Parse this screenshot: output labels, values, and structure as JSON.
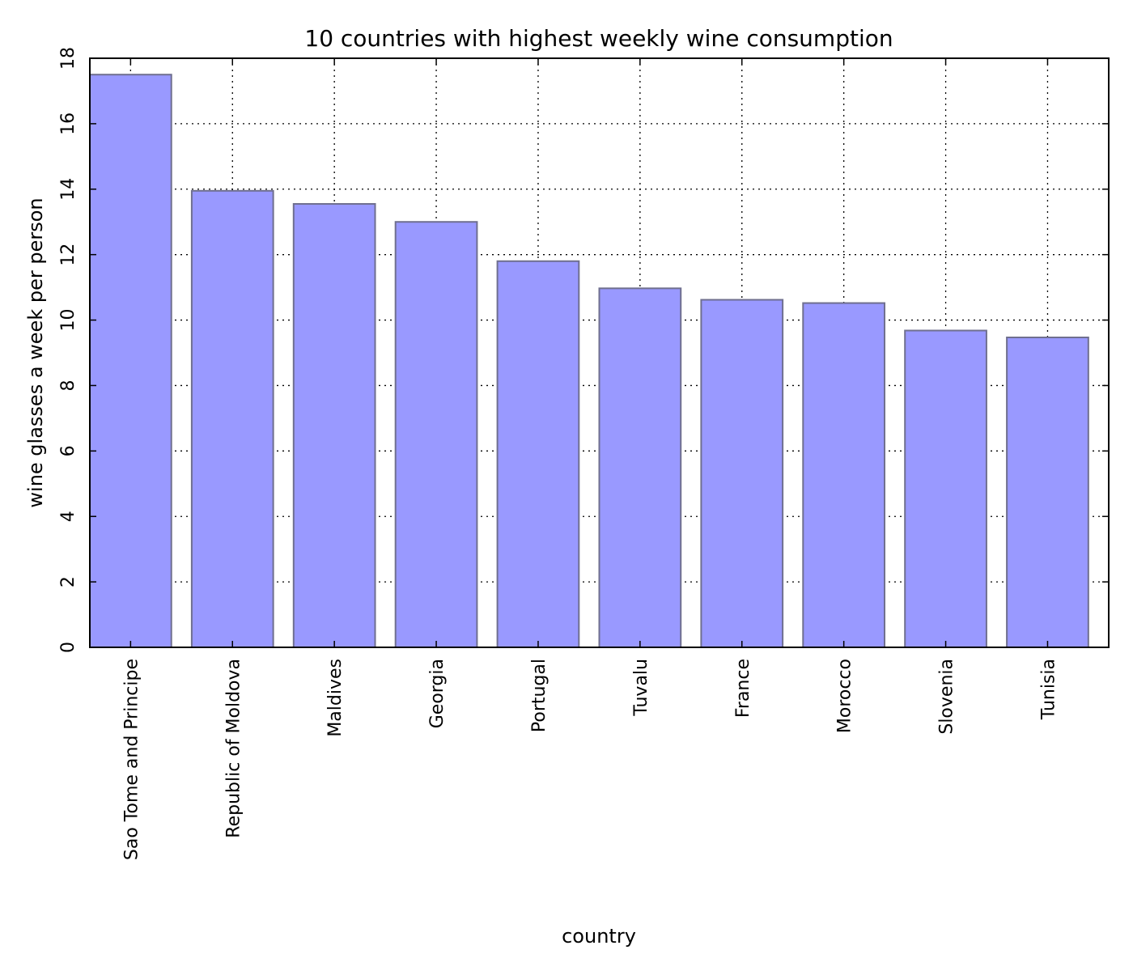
{
  "chart_data": {
    "type": "bar",
    "title": "10 countries with highest weekly wine consumption",
    "xlabel": "country",
    "ylabel": "wine glasses a week per person",
    "categories": [
      "Sao Tome and Principe",
      "Republic of Moldova",
      "Maldives",
      "Georgia",
      "Portugal",
      "Tuvalu",
      "France",
      "Morocco",
      "Slovenia",
      "Tunisia"
    ],
    "values": [
      17.5,
      13.95,
      13.55,
      13.0,
      11.8,
      10.97,
      10.62,
      10.52,
      9.68,
      9.47
    ],
    "ylim": [
      0,
      18
    ],
    "yticks": [
      0,
      2,
      4,
      6,
      8,
      10,
      12,
      14,
      16,
      18
    ],
    "grid": true,
    "colors": {
      "bar_fill": "#9999ff",
      "bar_edge": "#6f6f8f",
      "grid": "#000000",
      "axes": "#000000"
    }
  }
}
